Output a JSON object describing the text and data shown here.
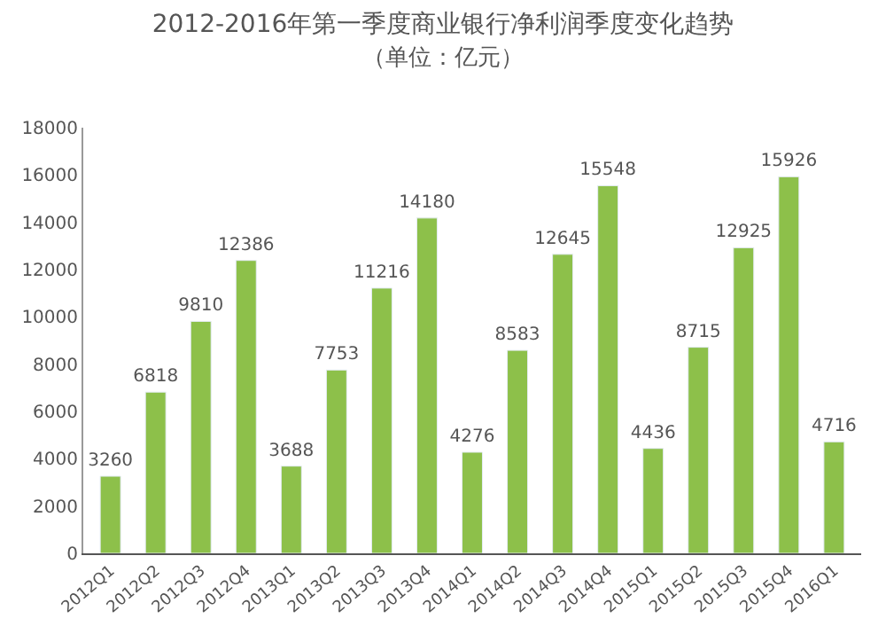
{
  "chart_data": {
    "type": "bar",
    "title": "2012-2016年第一季度商业银行净利润季度变化趋势",
    "subtitle": "（单位：亿元）",
    "categories": [
      "2012Q1",
      "2012Q2",
      "2012Q3",
      "2012Q4",
      "2013Q1",
      "2013Q2",
      "2013Q3",
      "2013Q4",
      "2014Q1",
      "2014Q2",
      "2014Q3",
      "2014Q4",
      "2015Q1",
      "2015Q2",
      "2015Q3",
      "2015Q4",
      "2016Q1"
    ],
    "values": [
      3260,
      6818,
      9810,
      12386,
      3688,
      7753,
      11216,
      14180,
      4276,
      8583,
      12645,
      15548,
      4436,
      8715,
      12925,
      15926,
      4716
    ],
    "color": "#8dc04a",
    "data_labels": true,
    "ylim": [
      0,
      18000
    ],
    "yticks": [
      0,
      2000,
      4000,
      6000,
      8000,
      10000,
      12000,
      14000,
      16000,
      18000
    ]
  }
}
